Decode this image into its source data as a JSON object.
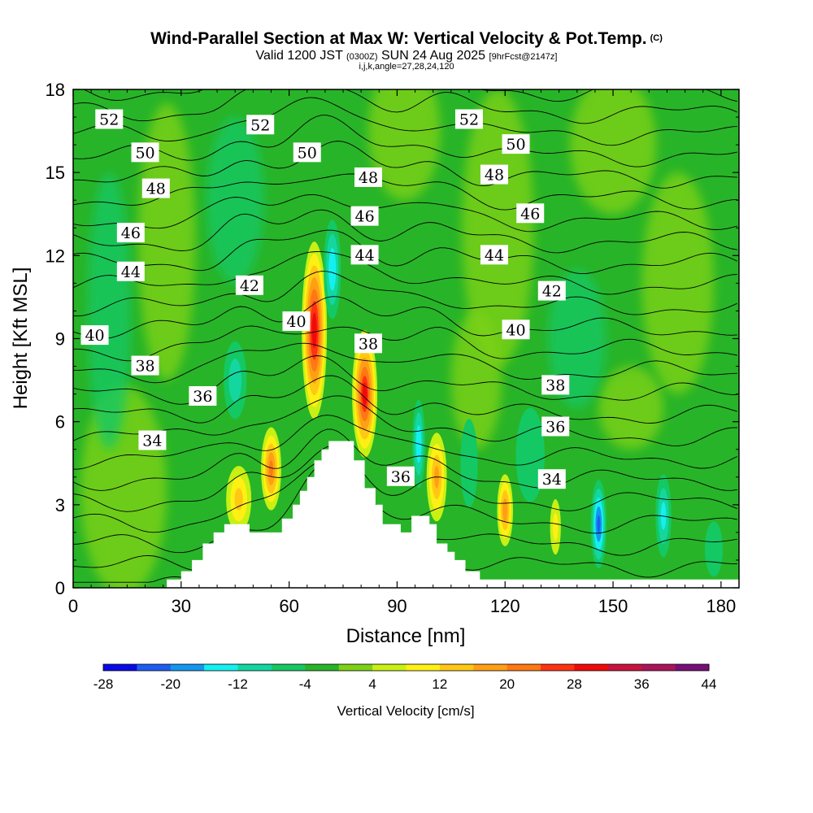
{
  "header": {
    "title": "Wind-Parallel Section at Max W: Vertical Velocity & Pot.Temp.",
    "copyright": "(C)",
    "valid_prefix": "Valid 1200 JST",
    "valid_utc": "(0300Z)",
    "valid_date": "SUN 24 Aug 2025",
    "forecast": "[9hrFcst@2147z]",
    "indices": "i,j,k,angle=27,28,24,120"
  },
  "chart_data": {
    "type": "heatmap",
    "title": "Wind-Parallel Section at Max W: Vertical Velocity & Pot.Temp.",
    "xlabel": "Distance [nm]",
    "ylabel": "Height [Kft MSL]",
    "xlim": [
      0,
      185
    ],
    "ylim": [
      0,
      18
    ],
    "x_ticks": [
      0,
      30,
      60,
      90,
      120,
      150,
      180
    ],
    "x_tick_labels": [
      "0",
      "30",
      "60",
      "90",
      "120",
      "150",
      "180"
    ],
    "y_ticks": [
      0,
      3,
      6,
      9,
      12,
      15,
      18
    ],
    "y_tick_labels": [
      "0",
      "3",
      "6",
      "9",
      "12",
      "15",
      "18"
    ],
    "colorbar": {
      "title": "Vertical Velocity [cm/s]",
      "min": -28,
      "max": 44,
      "step": 4,
      "tick_values": [
        -28,
        -20,
        -12,
        -4,
        4,
        12,
        20,
        28,
        36,
        44
      ],
      "tick_labels": [
        "-28",
        "-20",
        "-12",
        "-4",
        "4",
        "12",
        "20",
        "28",
        "36",
        "44"
      ],
      "colors": [
        "#0a0ae6",
        "#1f5cf0",
        "#1496f0",
        "#14f0f0",
        "#14d7a0",
        "#14c864",
        "#28b428",
        "#7dd214",
        "#c8f014",
        "#fff014",
        "#ffc814",
        "#ffa014",
        "#ff7814",
        "#ff3214",
        "#f00a0a",
        "#c8143c",
        "#aa145a",
        "#780f78"
      ]
    },
    "terrain_kft": [
      [
        0,
        0
      ],
      [
        26,
        0
      ],
      [
        26,
        0.3
      ],
      [
        30,
        0.3
      ],
      [
        30,
        0.6
      ],
      [
        33,
        0.6
      ],
      [
        33,
        1.0
      ],
      [
        36,
        1.0
      ],
      [
        36,
        1.6
      ],
      [
        39,
        1.6
      ],
      [
        39,
        2.0
      ],
      [
        42,
        2.0
      ],
      [
        42,
        2.3
      ],
      [
        49,
        2.3
      ],
      [
        49,
        2.0
      ],
      [
        58,
        2.0
      ],
      [
        58,
        2.5
      ],
      [
        61,
        2.5
      ],
      [
        61,
        3.0
      ],
      [
        63,
        3.0
      ],
      [
        63,
        3.5
      ],
      [
        65,
        3.5
      ],
      [
        65,
        4.0
      ],
      [
        67,
        4.0
      ],
      [
        67,
        4.6
      ],
      [
        69,
        4.6
      ],
      [
        69,
        5.0
      ],
      [
        71,
        5.0
      ],
      [
        71,
        5.3
      ],
      [
        78,
        5.3
      ],
      [
        78,
        4.6
      ],
      [
        81,
        4.6
      ],
      [
        81,
        3.6
      ],
      [
        84,
        3.6
      ],
      [
        84,
        3.0
      ],
      [
        86,
        3.0
      ],
      [
        86,
        2.3
      ],
      [
        91,
        2.3
      ],
      [
        91,
        2.0
      ],
      [
        94,
        2.0
      ],
      [
        94,
        2.6
      ],
      [
        99,
        2.6
      ],
      [
        99,
        2.3
      ],
      [
        101,
        2.3
      ],
      [
        101,
        1.6
      ],
      [
        104,
        1.6
      ],
      [
        104,
        1.3
      ],
      [
        106,
        1.3
      ],
      [
        106,
        1.0
      ],
      [
        109,
        1.0
      ],
      [
        109,
        0.6
      ],
      [
        113,
        0.6
      ],
      [
        113,
        0.3
      ],
      [
        118,
        0.3
      ],
      [
        118,
        0.3
      ],
      [
        185,
        0.3
      ]
    ],
    "velocity_cells": [
      {
        "x": 67,
        "y": 9.3,
        "rx": 3.5,
        "ry": 3.2,
        "w": 30
      },
      {
        "x": 81,
        "y": 7.0,
        "rx": 3.5,
        "ry": 2.3,
        "w": 28
      },
      {
        "x": 55,
        "y": 4.3,
        "rx": 2.8,
        "ry": 1.5,
        "w": 20
      },
      {
        "x": 46,
        "y": 3.2,
        "rx": 3.5,
        "ry": 1.2,
        "w": 12
      },
      {
        "x": 101,
        "y": 4.0,
        "rx": 2.8,
        "ry": 1.6,
        "w": 16
      },
      {
        "x": 120,
        "y": 2.8,
        "rx": 2.2,
        "ry": 1.3,
        "w": 18
      },
      {
        "x": 134,
        "y": 2.2,
        "rx": 1.5,
        "ry": 1.0,
        "w": 8
      },
      {
        "x": 72,
        "y": 11.5,
        "rx": 2.4,
        "ry": 1.8,
        "w": -14
      },
      {
        "x": 96,
        "y": 5.2,
        "rx": 1.8,
        "ry": 1.6,
        "w": -14
      },
      {
        "x": 146,
        "y": 2.3,
        "rx": 2.2,
        "ry": 1.6,
        "w": -20
      },
      {
        "x": 164,
        "y": 2.6,
        "rx": 2.2,
        "ry": 1.5,
        "w": -12
      },
      {
        "x": 45,
        "y": 7.5,
        "rx": 3.2,
        "ry": 1.4,
        "w": -9
      },
      {
        "x": 127,
        "y": 4.8,
        "rx": 4.0,
        "ry": 1.7,
        "w": -6
      },
      {
        "x": 110,
        "y": 4.5,
        "rx": 2.4,
        "ry": 1.6,
        "w": -5
      },
      {
        "x": 178,
        "y": 1.4,
        "rx": 2.5,
        "ry": 1.0,
        "w": -6
      }
    ],
    "pot_temp_contours": {
      "min_k": 30,
      "max_k": 53,
      "label_values": [
        "52",
        "52",
        "52",
        "50",
        "50",
        "50",
        "48",
        "48",
        "48",
        "46",
        "46",
        "46",
        "44",
        "44",
        "44",
        "42",
        "42",
        "40",
        "40",
        "40",
        "38",
        "38",
        "38",
        "36",
        "36",
        "36",
        "34",
        "34"
      ],
      "label_positions_data": [
        [
          10,
          16.9
        ],
        [
          52,
          16.7
        ],
        [
          110,
          16.9
        ],
        [
          20,
          15.7
        ],
        [
          65,
          15.7
        ],
        [
          123,
          16.0
        ],
        [
          23,
          14.4
        ],
        [
          82,
          14.8
        ],
        [
          117,
          14.9
        ],
        [
          16,
          12.8
        ],
        [
          81,
          13.4
        ],
        [
          127,
          13.5
        ],
        [
          16,
          11.4
        ],
        [
          81,
          12.0
        ],
        [
          117,
          12.0
        ],
        [
          49,
          10.9
        ],
        [
          133,
          10.7
        ],
        [
          6,
          9.1
        ],
        [
          62,
          9.6
        ],
        [
          123,
          9.3
        ],
        [
          20,
          8.0
        ],
        [
          82,
          8.8
        ],
        [
          134,
          7.3
        ],
        [
          36,
          6.9
        ],
        [
          134,
          5.8
        ],
        [
          91,
          4.0
        ],
        [
          22,
          5.3
        ],
        [
          133,
          3.9
        ]
      ]
    }
  }
}
